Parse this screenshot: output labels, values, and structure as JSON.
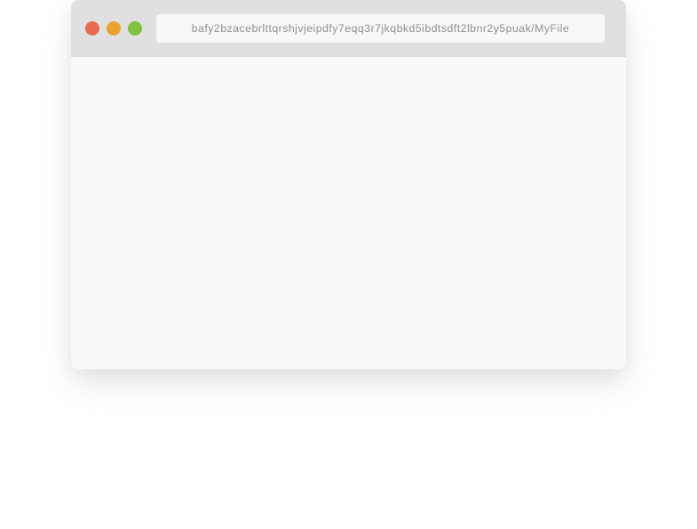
{
  "browser": {
    "address": "bafy2bzacebrlttqrshjvjeipdfy7eqq3r7jkqbkd5ibdtsdft2lbnr2y5puak/MyFile"
  },
  "controls": [
    {
      "name": "close-icon",
      "color": "#e9684f"
    },
    {
      "name": "minimize-icon",
      "color": "#e8a32e"
    },
    {
      "name": "maximize-icon",
      "color": "#7fc141"
    }
  ],
  "colors": {
    "titlebar": "#e0e0e0",
    "window": "#f8f8f8",
    "address_text": "#8f8f8f"
  }
}
